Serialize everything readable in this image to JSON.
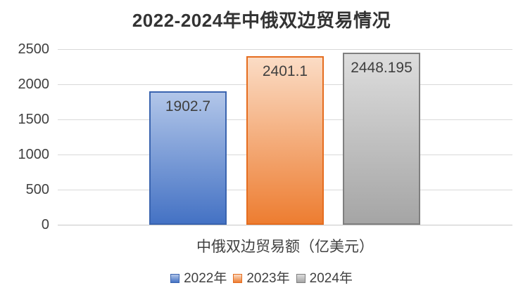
{
  "chart_data": {
    "type": "bar",
    "title": "2022-2024年中俄双边贸易情况",
    "categories": [
      "中俄双边贸易额（亿美元）"
    ],
    "series": [
      {
        "name": "2022年",
        "values": [
          1902.7
        ],
        "data_label": "1902.7",
        "fill_top": "#b2c6e9",
        "fill_bottom": "#4472c4",
        "border": "#3a64af"
      },
      {
        "name": "2023年",
        "values": [
          2401.1
        ],
        "data_label": "2401.1",
        "fill_top": "#fbdcc5",
        "fill_bottom": "#ed7d31",
        "border": "#e56d1f"
      },
      {
        "name": "2024年",
        "values": [
          2448.195
        ],
        "data_label": "2448.195",
        "fill_top": "#dddddd",
        "fill_bottom": "#a5a5a5",
        "border": "#7f7f7f"
      }
    ],
    "xlabel": "中俄双边贸易额（亿美元）",
    "ylabel": "",
    "ylim": [
      0,
      2500
    ],
    "yticks": [
      "0",
      "500",
      "1000",
      "1500",
      "2000",
      "2500"
    ],
    "ytick_interval": 500,
    "grid": true,
    "legend_position": "bottom",
    "background_color": "#ffffff",
    "gridline_color": "#d9d9d9",
    "axis_line_color": "#c8c8c8",
    "text_color": "#404040"
  }
}
